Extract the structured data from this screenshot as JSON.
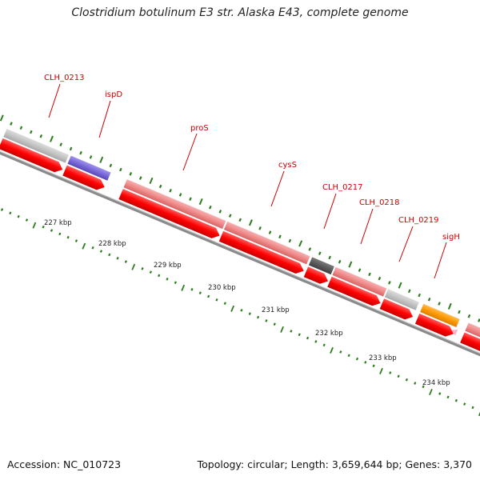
{
  "title": "Clostridium botulinum E3 str. Alaska E43, complete genome",
  "footer": {
    "accession": "Accession: NC_010723",
    "topology": "Topology: circular; Length: 3,659,644 bp; Genes: 3,370"
  },
  "colors": {
    "tick": "#2e7d1e",
    "label_line": "#cc0000",
    "backbone": "#8a8a8a",
    "cds_arrow": "#ff0000",
    "gene_pink": "#f08a8a",
    "gene_gray": "#c4c4c4",
    "gene_blue": "#7a6ad8",
    "gene_dark": "#5a5a5a",
    "gene_orange": "#ff9900",
    "gene_lightpink": "#f7b7c8"
  },
  "scale_labels": [
    "227 kbp",
    "228 kbp",
    "229 kbp",
    "230 kbp",
    "231 kbp",
    "232 kbp",
    "233 kbp",
    "234 kbp"
  ],
  "genes": [
    {
      "name": "CLH_0213",
      "color": "gene_gray"
    },
    {
      "name": "ispD",
      "color": "gene_blue"
    },
    {
      "name": "proS",
      "color": "gene_pink"
    },
    {
      "name": "cysS",
      "color": "gene_pink"
    },
    {
      "name": "CLH_0217",
      "color": "gene_dark"
    },
    {
      "name": "CLH_0218",
      "color": "gene_pink"
    },
    {
      "name": "CLH_0219",
      "color": "gene_gray"
    },
    {
      "name": "sigH",
      "color": "gene_orange"
    }
  ]
}
